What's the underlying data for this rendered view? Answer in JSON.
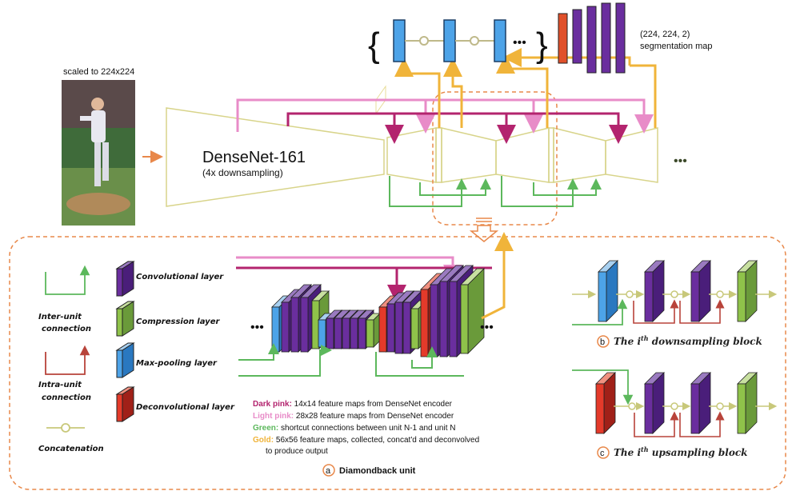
{
  "top": {
    "scaled_label": "scaled to 224x224",
    "output_dims": "(224, 224, 2)",
    "output_label": "segmentation map",
    "brace_open": "{",
    "brace_close": "}",
    "ellipsis": "•••",
    "encoder_name": "DenseNet-161",
    "encoder_sub": "(4x downsampling)",
    "trailing_dots": "•••"
  },
  "legend": {
    "inter_unit_line1": "Inter-unit",
    "inter_unit_line2": "connection",
    "intra_unit_line1": "Intra-unit",
    "intra_unit_line2": "connection",
    "concatenation": "Concatenation",
    "conv": "Convolutional layer",
    "compression": "Compression layer",
    "maxpool": "Max-pooling layer",
    "deconv": "Deconvolutional  layer"
  },
  "notes": {
    "dark_pink_key": "Dark pink:",
    "dark_pink_text": " 14x14 feature maps from DenseNet encoder",
    "light_pink_key": "Light pink:",
    "light_pink_text": " 28x28 feature maps from DenseNet encoder",
    "green_key": "Green:",
    "green_text": " shortcut connections between unit N-1 and unit N",
    "gold_key": "Gold:",
    "gold_text": " 56x56 feature maps, collected, concat'd and deconvolved",
    "gold_text2": "to produce output"
  },
  "captions": {
    "a_letter": "a",
    "a_text": "Diamondback unit",
    "b_letter": "b",
    "b_text": "The i",
    "b_sup": "th",
    "b_rest": "  downsampling block",
    "c_letter": "c",
    "c_text": "The i",
    "c_sup": "th",
    "c_rest": "  upsampling block"
  },
  "colors": {
    "blue": "#4da3e8",
    "purple": "#6a2e9e",
    "green": "#8fc24a",
    "red": "#e43a2a",
    "dark_pink": "#b3246e",
    "light_pink": "#e88cc8",
    "gold": "#f0b43a",
    "inter_green": "#5cb85c",
    "intra_red": "#b8433a",
    "olive": "#c8c87a",
    "orange_dash": "#e8884a"
  }
}
